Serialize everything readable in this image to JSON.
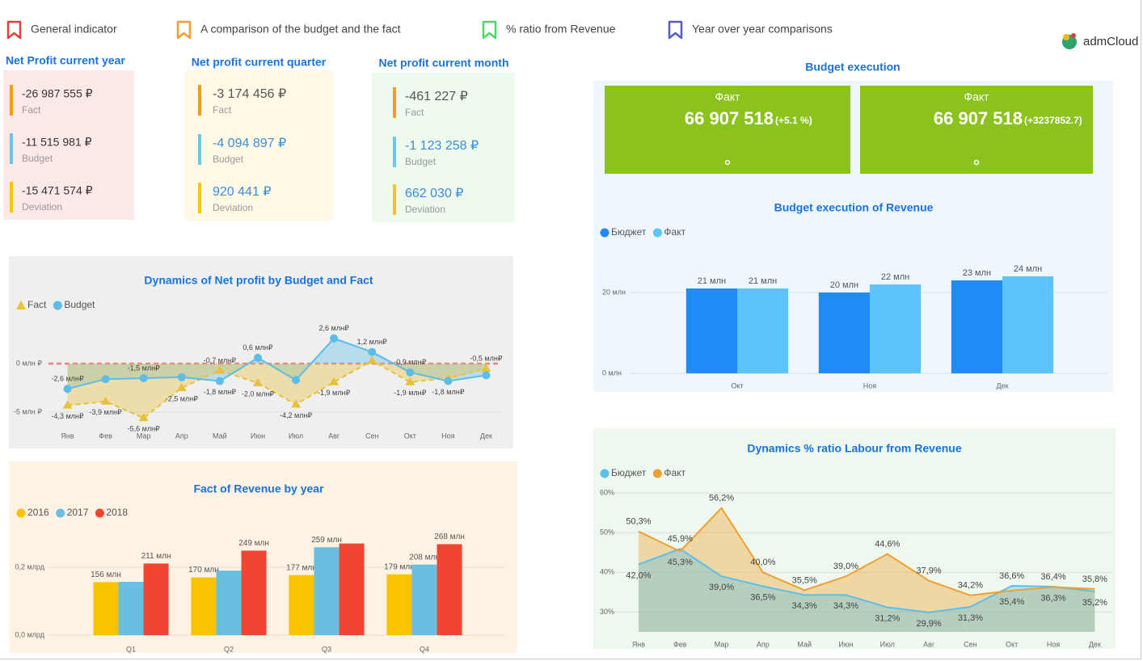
{
  "header": {
    "legend": [
      {
        "label": "General indicator",
        "color": "#e0403a"
      },
      {
        "label": "A comparison of the budget and the fact",
        "color": "#f0a030"
      },
      {
        "label": "% ratio from Revenue",
        "color": "#4cd964"
      },
      {
        "label": "Year over year comparisons",
        "color": "#5b5bc8"
      }
    ],
    "logo": "admCloud"
  },
  "kpi_panels": [
    {
      "title": "Net Profit current year",
      "background": "#fde8e8",
      "items": [
        {
          "value": "-26 987 555 ₽",
          "label": "Fact",
          "value_color": "#333333",
          "bar_color": "#f29d1b"
        },
        {
          "value": "-11 515 981 ₽",
          "label": "Budget",
          "value_color": "#333333",
          "bar_color": "#6cc7e6"
        },
        {
          "value": "-15 471 574 ₽",
          "label": "Deviation",
          "value_color": "#333333",
          "bar_color": "#f5c518"
        }
      ]
    },
    {
      "title": "Net profit current quarter",
      "background": "#fff9e6",
      "items": [
        {
          "value": "-3 174 456 ₽",
          "label": "Fact",
          "value_color": "#555555",
          "bar_color": "#f29d1b"
        },
        {
          "value": "-4 094 897 ₽",
          "label": "Budget",
          "value_color": "#3a8fd8",
          "bar_color": "#6cc7e6"
        },
        {
          "value": "920 441 ₽",
          "label": "Deviation",
          "value_color": "#3a8fd8",
          "bar_color": "#f5c518"
        }
      ]
    },
    {
      "title": "Net profit current month",
      "background": "#eefaee",
      "items": [
        {
          "value": "-461 227 ₽",
          "label": "Fact",
          "value_color": "#555555",
          "bar_color": "#f29d1b"
        },
        {
          "value": "-1 123 258 ₽",
          "label": "Budget",
          "value_color": "#3a8fd8",
          "bar_color": "#6cc7e6"
        },
        {
          "value": "662 030 ₽",
          "label": "Deviation",
          "value_color": "#3a8fd8",
          "bar_color": "#f5c518"
        }
      ]
    }
  ],
  "budget_execution": {
    "title": "Budget execution",
    "background": "#eef7fd",
    "card_color": "#8cc21e",
    "cards": [
      {
        "label": "Факт",
        "value": "66 907 518",
        "delta": "(+5.1 %)"
      },
      {
        "label": "Факт",
        "value": "66 907 518",
        "delta": "(+3237852.7)"
      }
    ]
  },
  "chart_data": [
    {
      "type": "line",
      "title": "Dynamics of  Net profit by Budget and Fact",
      "background": "#efefef",
      "fill": true,
      "zero_line_color": "#f08080",
      "categories": [
        "Янв",
        "Фев",
        "Мар",
        "Апр",
        "Май",
        "Июн",
        "Июл",
        "Авг",
        "Сен",
        "Окт",
        "Ноя",
        "Дек"
      ],
      "series": [
        {
          "name": "Fact",
          "color": "#e8c13a",
          "marker": "triangle",
          "line_style": "dashed",
          "values": [
            -4.3,
            -3.9,
            -5.6,
            -2.5,
            -0.7,
            -2.0,
            -4.2,
            -1.9,
            0.3,
            -1.9,
            -1.5,
            -0.5
          ],
          "value_labels": [
            "-4,3 млн₽",
            "-3,9 млн₽",
            "-5,6 млн₽",
            "-2,5 млн₽",
            "-0,7 млн₽",
            "-2,0 млн₽",
            "-4,2 млн₽",
            "-1,9 млн₽",
            null,
            "-1,9 млн₽",
            null,
            "-0,5 млн₽"
          ]
        },
        {
          "name": "Budget",
          "color": "#5bbde8",
          "marker": "circle",
          "line_style": "solid",
          "values": [
            -2.6,
            -1.6,
            -1.5,
            -1.4,
            -1.8,
            0.6,
            -1.7,
            2.6,
            1.2,
            -0.9,
            -1.8,
            -1.2
          ],
          "value_labels": [
            "-2,6 млн₽",
            null,
            "-1,5 млн₽",
            null,
            "-1,8 млн₽",
            "0,6 млн₽",
            null,
            "2,6 млн₽",
            "1,2 млн₽",
            "-0,9 млн₽",
            "-1,8 млн₽",
            null
          ]
        }
      ],
      "ylim": [
        -6,
        3
      ],
      "yticks": [
        {
          "value": -5,
          "label": "-5 млн ₽"
        },
        {
          "value": 0,
          "label": "0 млн ₽"
        }
      ]
    },
    {
      "type": "bar",
      "title": "Fact of Revenue by year",
      "background": "#fdf2e3",
      "categories": [
        "Q1",
        "Q2",
        "Q3",
        "Q4"
      ],
      "series": [
        {
          "name": "2016",
          "color": "#f8c400",
          "values": [
            0.156,
            0.17,
            0.177,
            0.179
          ],
          "value_labels": [
            "156 млн",
            "170 млн",
            "177 млн",
            "179 млн"
          ]
        },
        {
          "name": "2017",
          "color": "#68bfe0",
          "values": [
            0.157,
            0.19,
            0.259,
            0.208
          ],
          "value_labels": [
            null,
            null,
            "259 млн",
            "208 млн"
          ]
        },
        {
          "name": "2018",
          "color": "#f04530",
          "values": [
            0.211,
            0.249,
            0.27,
            0.268
          ],
          "value_labels": [
            "211 млн",
            "249 млн",
            null,
            "268 млн"
          ]
        }
      ],
      "ylim": [
        0,
        0.3
      ],
      "yticks": [
        {
          "value": 0,
          "label": "0,0 млрд"
        },
        {
          "value": 0.2,
          "label": "0,2 млрд"
        }
      ]
    },
    {
      "type": "bar",
      "title": "Budget execution of Revenue",
      "categories": [
        "Окт",
        "Ноя",
        "Дек"
      ],
      "series": [
        {
          "name": "Бюджет",
          "color": "#1f8bf5",
          "values": [
            21,
            20,
            23
          ],
          "value_labels": [
            "21 млн",
            "20 млн",
            "23 млн"
          ]
        },
        {
          "name": "Факт",
          "color": "#5bc5fa",
          "values": [
            21,
            22,
            24
          ],
          "value_labels": [
            "21 млн",
            "22 млн",
            "24 млн"
          ]
        }
      ],
      "ylim": [
        0,
        30
      ],
      "yticks": [
        {
          "value": 0,
          "label": "0 млн"
        },
        {
          "value": 20,
          "label": "20 млн"
        }
      ]
    },
    {
      "type": "area",
      "title": "Dynamics % ratio Labour from Revenue",
      "background": "#eef8ee",
      "categories": [
        "Янв",
        "Фев",
        "Мар",
        "Апр",
        "Май",
        "Июн",
        "Июл",
        "Авг",
        "Сен",
        "Окт",
        "Ноя",
        "Дек"
      ],
      "series": [
        {
          "name": "Бюджет",
          "color": "#5bc0e8",
          "values": [
            42.0,
            45.9,
            39.0,
            36.5,
            34.3,
            34.3,
            31.2,
            29.9,
            31.3,
            36.6,
            36.4,
            35.2
          ],
          "value_labels": [
            "42,0%",
            "45,9%",
            "39,0%",
            "36,5%",
            "34,3%",
            "34,3%",
            "31,2%",
            "29,9%",
            "31,3%",
            "36,6%",
            "36,4%",
            "35,2%"
          ]
        },
        {
          "name": "Факт",
          "color": "#f0a030",
          "values": [
            50.3,
            45.3,
            56.2,
            40.0,
            35.5,
            39.0,
            44.6,
            37.9,
            34.2,
            35.4,
            36.3,
            35.8
          ],
          "value_labels": [
            "50,3%",
            "45,3%",
            "56,2%",
            "40,0%",
            "35,5%",
            "39,0%",
            "44,6%",
            "37,9%",
            "34,2%",
            "35,4%",
            "36,3%",
            "35,8%"
          ]
        }
      ],
      "ylim": [
        25,
        60
      ],
      "yticks": [
        {
          "value": 30,
          "label": "30%"
        },
        {
          "value": 40,
          "label": "40%"
        },
        {
          "value": 50,
          "label": "50%"
        },
        {
          "value": 60,
          "label": "60%"
        }
      ]
    }
  ]
}
